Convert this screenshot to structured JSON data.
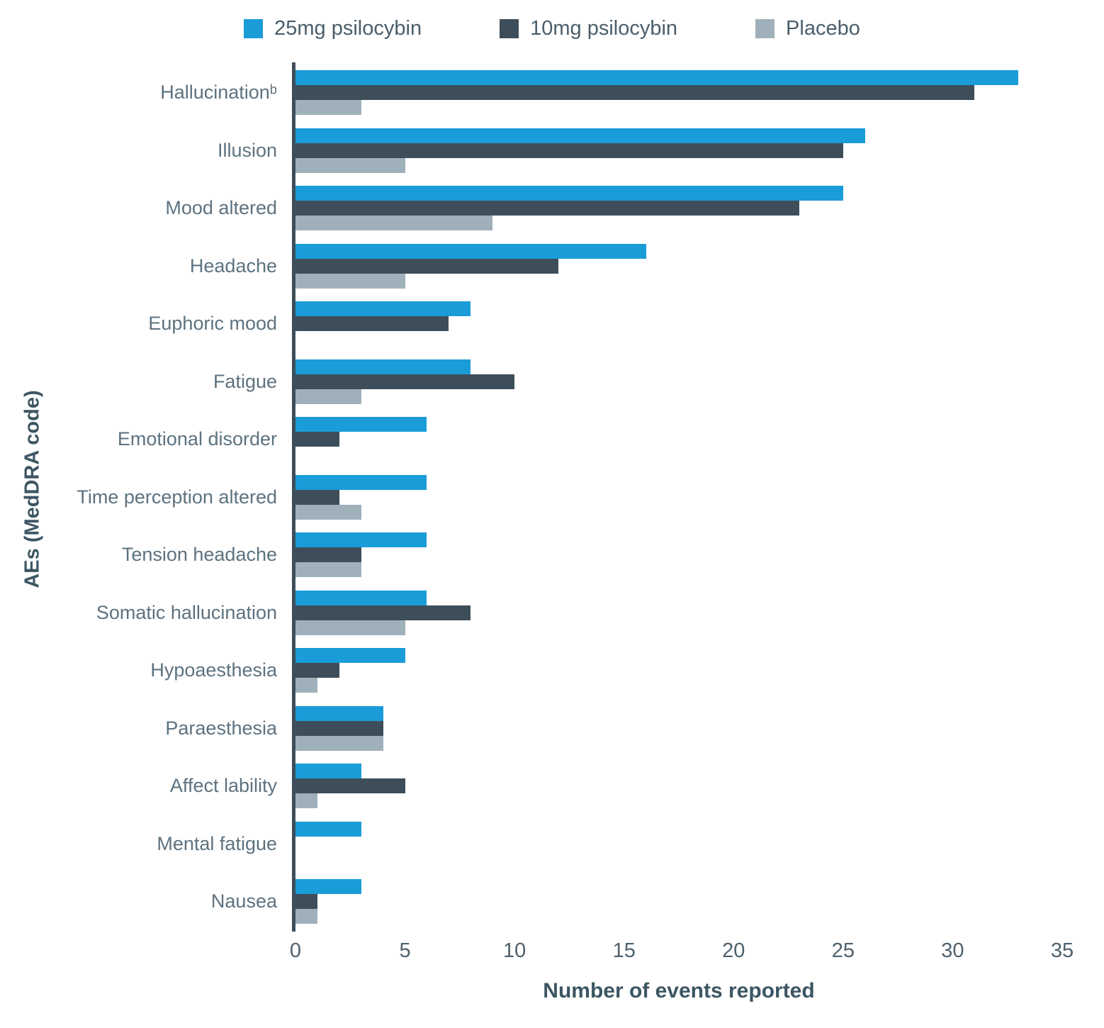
{
  "legend": [
    {
      "label": "25mg psilocybin",
      "color": "#1a9cd8"
    },
    {
      "label": "10mg psilocybin",
      "color": "#3d4e5a"
    },
    {
      "label": "Placebo",
      "color": "#9fb0ba"
    }
  ],
  "chart_data": {
    "type": "bar",
    "orientation": "horizontal",
    "title": "",
    "xlabel": "Number of events reported",
    "ylabel": "AEs (MedDRA code)",
    "xlim": [
      0,
      35
    ],
    "xticks": [
      0,
      5,
      10,
      15,
      20,
      25,
      30,
      35
    ],
    "grid": false,
    "legend_position": "top",
    "categories": [
      "Hallucinationᵇ",
      "Illusion",
      "Mood altered",
      "Headache",
      "Euphoric mood",
      "Fatigue",
      "Emotional disorder",
      "Time perception altered",
      "Tension headache",
      "Somatic hallucination",
      "Hypoaesthesia",
      "Paraesthesia",
      "Affect lability",
      "Mental fatigue",
      "Nausea"
    ],
    "series": [
      {
        "name": "25mg psilocybin",
        "color": "#1a9cd8",
        "values": [
          33,
          26,
          25,
          16,
          8,
          8,
          6,
          6,
          6,
          6,
          5,
          4,
          3,
          3,
          3
        ]
      },
      {
        "name": "10mg psilocybin",
        "color": "#3d4e5a",
        "values": [
          31,
          25,
          23,
          12,
          7,
          10,
          2,
          2,
          3,
          8,
          2,
          4,
          5,
          0,
          1
        ]
      },
      {
        "name": "Placebo",
        "color": "#9fb0ba",
        "values": [
          3,
          5,
          9,
          5,
          0,
          3,
          0,
          3,
          3,
          5,
          1,
          4,
          1,
          0,
          1
        ]
      }
    ]
  }
}
